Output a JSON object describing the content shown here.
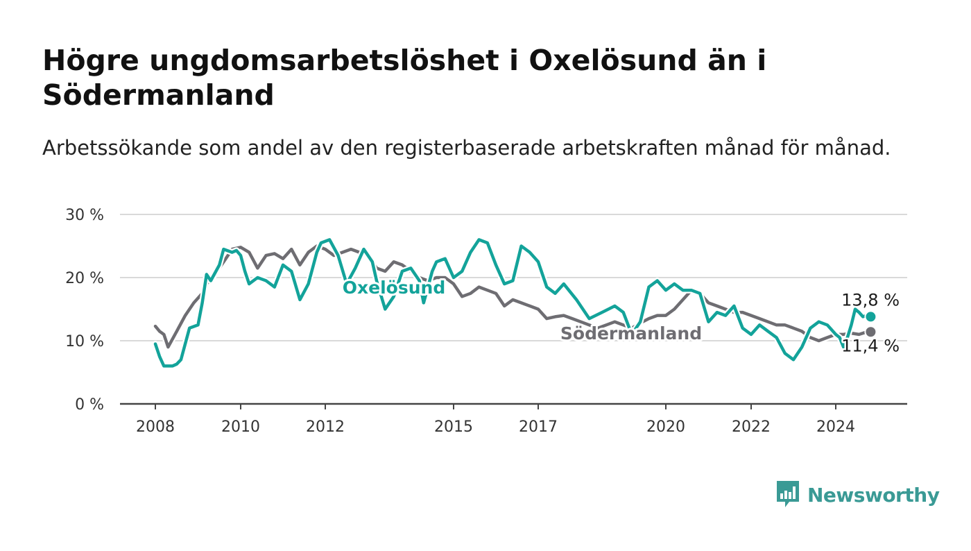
{
  "title": "Högre ungdomsarbetslöshet i Oxelösund än i Södermanland",
  "subtitle": "Arbetssökande som andel av den registerbaserade arbetskraften månad för månad.",
  "brand": {
    "name": "Newsworthy",
    "color": "#3a9a95",
    "icon": "newsworthy-logo-icon"
  },
  "chart_data": {
    "type": "line",
    "title": "Högre ungdomsarbetslöshet i Oxelösund än i Södermanland",
    "subtitle": "Arbetssökande som andel av den registerbaserade arbetskraften månad för månad.",
    "xlabel": "",
    "ylabel": "",
    "ylim": [
      0,
      30
    ],
    "xlim": [
      2008,
      2025
    ],
    "yticks": [
      0,
      10,
      20,
      30
    ],
    "ytick_labels": [
      "0 %",
      "10 %",
      "20 %",
      "30 %"
    ],
    "xticks": [
      2008,
      2010,
      2012,
      2015,
      2017,
      2020,
      2022,
      2024
    ],
    "xtick_labels": [
      "2008",
      "2010",
      "2012",
      "2015",
      "2017",
      "2020",
      "2022",
      "2024"
    ],
    "grid": true,
    "series": [
      {
        "name": "Oxelösund",
        "color": "#13a39a",
        "end_label": "13,8 %",
        "x": [
          2008.0,
          2008.1,
          2008.2,
          2008.4,
          2008.5,
          2008.6,
          2008.8,
          2009.0,
          2009.1,
          2009.2,
          2009.3,
          2009.5,
          2009.6,
          2009.8,
          2009.9,
          2010.0,
          2010.1,
          2010.2,
          2010.4,
          2010.6,
          2010.8,
          2011.0,
          2011.2,
          2011.4,
          2011.6,
          2011.8,
          2011.9,
          2012.1,
          2012.3,
          2012.5,
          2012.7,
          2012.9,
          2013.1,
          2013.2,
          2013.4,
          2013.6,
          2013.8,
          2014.0,
          2014.2,
          2014.3,
          2014.5,
          2014.6,
          2014.8,
          2015.0,
          2015.2,
          2015.4,
          2015.6,
          2015.8,
          2016.0,
          2016.2,
          2016.4,
          2016.6,
          2016.8,
          2017.0,
          2017.2,
          2017.4,
          2017.6,
          2017.9,
          2018.2,
          2018.5,
          2018.8,
          2019.0,
          2019.2,
          2019.4,
          2019.6,
          2019.8,
          2020.0,
          2020.2,
          2020.4,
          2020.6,
          2020.8,
          2021.0,
          2021.2,
          2021.4,
          2021.6,
          2021.8,
          2022.0,
          2022.2,
          2022.4,
          2022.6,
          2022.8,
          2023.0,
          2023.2,
          2023.4,
          2023.6,
          2023.8,
          2024.0,
          2024.1,
          2024.2,
          2024.3,
          2024.4,
          2024.5,
          2024.6,
          2024.7,
          2024.8,
          2024.9
        ],
        "y": [
          9.5,
          7.5,
          6.0,
          6.0,
          6.3,
          7.0,
          12.0,
          12.5,
          16.0,
          20.5,
          19.5,
          22.0,
          24.5,
          24.0,
          24.3,
          23.5,
          21.0,
          19.0,
          20.0,
          19.5,
          18.5,
          22.0,
          21.0,
          16.5,
          19.0,
          24.0,
          25.5,
          26.0,
          23.5,
          19.0,
          21.5,
          24.5,
          22.5,
          19.5,
          15.0,
          17.0,
          21.0,
          21.5,
          19.5,
          16.0,
          21.0,
          22.5,
          23.0,
          20.0,
          21.0,
          24.0,
          26.0,
          25.5,
          22.0,
          19.0,
          19.5,
          25.0,
          24.0,
          22.5,
          18.5,
          17.5,
          19.0,
          16.5,
          13.5,
          14.5,
          15.5,
          14.5,
          11.0,
          13.0,
          18.5,
          19.5,
          18.0,
          19.0,
          18.0,
          18.0,
          17.5,
          13.0,
          14.5,
          14.0,
          15.5,
          12.0,
          11.0,
          12.5,
          11.5,
          10.5,
          8.0,
          7.0,
          9.0,
          12.0,
          13.0,
          12.5,
          11.0,
          10.5,
          9.0,
          10.5,
          12.5,
          15.0,
          14.5,
          13.8,
          14.0,
          13.8
        ]
      },
      {
        "name": "Södermanland",
        "color": "#6e6d72",
        "end_label": "11,4 %",
        "x": [
          2008.0,
          2008.1,
          2008.2,
          2008.3,
          2008.5,
          2008.7,
          2008.9,
          2009.1,
          2009.2,
          2009.4,
          2009.6,
          2009.8,
          2010.0,
          2010.2,
          2010.4,
          2010.6,
          2010.8,
          2011.0,
          2011.2,
          2011.4,
          2011.6,
          2011.8,
          2012.0,
          2012.2,
          2012.4,
          2012.6,
          2012.8,
          2013.0,
          2013.2,
          2013.4,
          2013.6,
          2013.8,
          2014.0,
          2014.2,
          2014.4,
          2014.6,
          2014.8,
          2015.0,
          2015.2,
          2015.4,
          2015.6,
          2015.8,
          2016.0,
          2016.2,
          2016.4,
          2016.6,
          2016.8,
          2017.0,
          2017.2,
          2017.4,
          2017.6,
          2017.8,
          2018.0,
          2018.2,
          2018.4,
          2018.6,
          2018.8,
          2019.0,
          2019.2,
          2019.4,
          2019.6,
          2019.8,
          2020.0,
          2020.2,
          2020.4,
          2020.6,
          2020.8,
          2021.0,
          2021.2,
          2021.4,
          2021.6,
          2021.8,
          2022.0,
          2022.2,
          2022.4,
          2022.6,
          2022.8,
          2023.0,
          2023.2,
          2023.4,
          2023.6,
          2023.8,
          2024.0,
          2024.2,
          2024.4,
          2024.6,
          2024.8,
          2024.9
        ],
        "y": [
          12.3,
          11.5,
          11.0,
          9.0,
          11.5,
          14.0,
          16.0,
          17.5,
          19.0,
          20.5,
          22.5,
          24.5,
          24.8,
          24.0,
          21.5,
          23.5,
          23.8,
          23.0,
          24.5,
          22.0,
          24.0,
          25.0,
          24.5,
          23.5,
          24.0,
          24.5,
          24.0,
          23.5,
          21.5,
          21.0,
          22.5,
          22.0,
          21.0,
          20.0,
          19.5,
          20.0,
          20.0,
          19.0,
          17.0,
          17.5,
          18.5,
          18.0,
          17.5,
          15.5,
          16.5,
          16.0,
          15.5,
          15.0,
          13.5,
          13.8,
          14.0,
          13.5,
          13.0,
          12.5,
          12.0,
          12.5,
          13.0,
          12.5,
          12.0,
          12.8,
          13.5,
          14.0,
          14.0,
          15.0,
          16.5,
          18.0,
          17.5,
          16.0,
          15.5,
          15.0,
          14.5,
          14.5,
          14.0,
          13.5,
          13.0,
          12.5,
          12.5,
          12.0,
          11.5,
          10.5,
          10.0,
          10.5,
          11.0,
          11.0,
          11.2,
          11.0,
          11.4,
          11.4
        ]
      }
    ],
    "annotations": [
      {
        "text": "Oxelösund",
        "series": "Oxelösund"
      },
      {
        "text": "Södermanland",
        "series": "Södermanland"
      }
    ]
  }
}
